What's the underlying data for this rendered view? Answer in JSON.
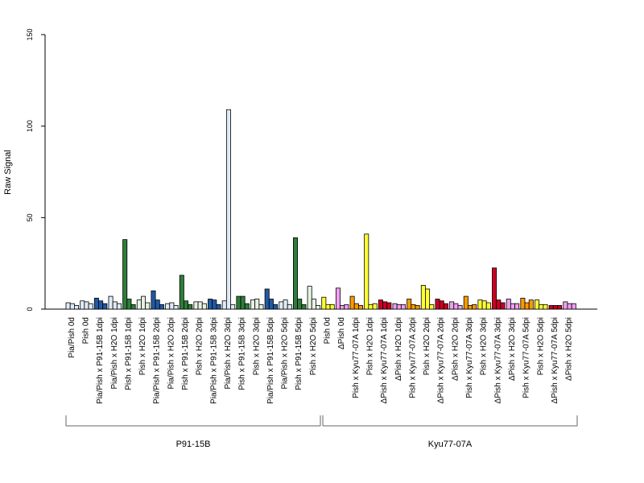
{
  "chart_data": {
    "type": "bar",
    "ylabel": "Raw Signal",
    "ylim": [
      0,
      150
    ],
    "yticks": [
      0,
      50,
      100,
      150
    ],
    "ytick_labels": [
      "0",
      "50",
      "100",
      "150"
    ],
    "grid": false,
    "bars_per_group": 3,
    "categories": [
      "Pia/Pish 0d",
      "Pish 0d",
      "Pia/Pish x P91-15B 1dpi",
      "Pia/Pish x H2O 1dpi",
      "Pish x P91-15B 1dpi",
      "Pish x H2O 1dpi",
      "Pia/Pish x P91-15B 2dpi",
      "Pia/Pish x H2O 2dpi",
      "Pish x P91-15B 2dpi",
      "Pish x H2O 2dpi",
      "Pia/Pish x P91-15B 3dpi",
      "Pia/Pish x H2O 3dpi",
      "Pish x P91-15B 3dpi",
      "Pish x H2O 3dpi",
      "Pia/Pish x P91-15B 5dpi",
      "Pia/Pish x H2O 5dpi",
      "Pish x P91-15B 5dpi",
      "Pish x H2O 5dpi",
      "Pish 0d",
      "ΔPish 0d",
      "Pish x Kyu77-07A 1dpi",
      "Pish x H2O 1dpi",
      "ΔPish x Kyu77-07A 1dpi",
      "ΔPish x H2O 1dpi",
      "Pish x Kyu77-07A 2dpi",
      "Pish x H2O 2dpi",
      "ΔPish x Kyu77-07A 2dpi",
      "ΔPish x H2O 2dpi",
      "Pish x Kyu77-07A 3dpi",
      "Pish x H2O 3dpi",
      "ΔPish x Kyu77-07A 3dpi",
      "ΔPish x H2O 3dpi",
      "Pish x Kyu77-07A 5dpi",
      "Pish x H2O 5dpi",
      "ΔPish x Kyu77-07A 5dpi",
      "ΔPish x H2O 5dpi"
    ],
    "colors": [
      "#deebf7",
      "#deebf7",
      "#1f5aa6",
      "#deebf7",
      "#2e7d3a",
      "#e5f2e0",
      "#1f5aa6",
      "#deebf7",
      "#2e7d3a",
      "#e5f2e0",
      "#1f5aa6",
      "#deebf7",
      "#2e7d3a",
      "#e5f2e0",
      "#1f5aa6",
      "#deebf7",
      "#2e7d3a",
      "#e5f2e0",
      "#ffff33",
      "#f0a0f0",
      "#ff9900",
      "#ffff33",
      "#cc0022",
      "#f0a0f0",
      "#ff9900",
      "#ffff33",
      "#cc0022",
      "#f0a0f0",
      "#ff9900",
      "#ffff33",
      "#cc0022",
      "#f0a0f0",
      "#ff9900",
      "#ffff33",
      "#cc0022",
      "#f0a0f0"
    ],
    "values": [
      [
        3.5,
        3,
        2
      ],
      [
        4.5,
        4,
        3
      ],
      [
        6,
        4.5,
        3
      ],
      [
        7,
        4,
        3
      ],
      [
        38,
        5.5,
        2.5
      ],
      [
        5,
        7,
        3.5
      ],
      [
        10,
        5,
        2.5
      ],
      [
        3,
        3.5,
        2
      ],
      [
        18.5,
        4.5,
        2.5
      ],
      [
        4,
        4,
        3
      ],
      [
        5.5,
        5,
        2.5
      ],
      [
        4.5,
        109,
        2.5
      ],
      [
        7,
        7,
        3
      ],
      [
        5,
        5.5,
        2.5
      ],
      [
        11,
        5.5,
        2.5
      ],
      [
        4,
        5,
        2.5
      ],
      [
        39,
        5.5,
        2.5
      ],
      [
        12.5,
        5.5,
        2
      ],
      [
        6.5,
        2.5,
        2.5
      ],
      [
        11.5,
        2,
        2.5
      ],
      [
        7,
        3,
        2
      ],
      [
        41,
        2.5,
        3
      ],
      [
        5,
        4,
        3.5
      ],
      [
        3,
        2.5,
        2.5
      ],
      [
        5.5,
        2.5,
        2
      ],
      [
        13,
        11,
        2.5
      ],
      [
        5.5,
        4.5,
        3
      ],
      [
        4,
        3,
        2
      ],
      [
        7,
        2,
        2.5
      ],
      [
        5,
        4.5,
        3.5
      ],
      [
        22.5,
        5,
        3.5
      ],
      [
        5.5,
        3,
        3
      ],
      [
        6,
        3.5,
        5
      ],
      [
        5,
        2.5,
        2.5
      ],
      [
        2,
        2,
        2
      ],
      [
        4,
        3,
        3
      ]
    ],
    "groups": [
      {
        "label": "P91-15B",
        "start": 0,
        "end": 17
      },
      {
        "label": "Kyu77-07A",
        "start": 18,
        "end": 35
      }
    ]
  }
}
